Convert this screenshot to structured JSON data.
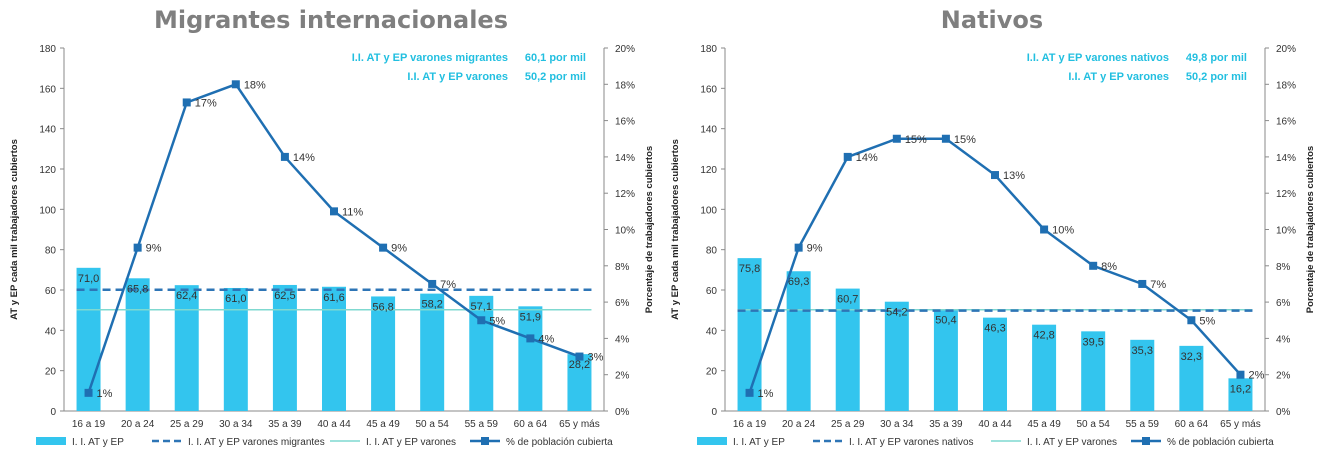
{
  "colors": {
    "bar": "#33c5ee",
    "line": "#1f6fb2",
    "dash": "#2e75b6",
    "thin": "#7fd9d0",
    "note": "#22bfe0",
    "title": "#7f7f7f",
    "axis": "#8a8a8a",
    "text": "#333333"
  },
  "chart_data": [
    {
      "type": "bar",
      "title": "Migrantes internacionales",
      "categories": [
        "16 a 19",
        "20 a 24",
        "25 a 29",
        "30 a 34",
        "35 a 39",
        "40 a 44",
        "45 a 49",
        "50 a 54",
        "55 a 59",
        "60 a 64",
        "65 y más"
      ],
      "bar_values": [
        71.0,
        65.8,
        62.4,
        61.0,
        62.5,
        61.6,
        56.8,
        58.2,
        57.1,
        51.9,
        28.2
      ],
      "bar_labels": [
        "71,0",
        "65,8",
        "62,4",
        "61,0",
        "62,5",
        "61,6",
        "56,8",
        "58,2",
        "57,1",
        "51,9",
        "28,2"
      ],
      "line_values": [
        1,
        9,
        17,
        18,
        14,
        11,
        9,
        7,
        5,
        4,
        3
      ],
      "line_labels": [
        "1%",
        "9%",
        "17%",
        "18%",
        "14%",
        "11%",
        "9%",
        "7%",
        "5%",
        "4%",
        "3%"
      ],
      "dash_value": 60.1,
      "thin_value": 50.2,
      "ylabel_left": "AT y EP cada mil trabajadores cubiertos",
      "ylabel_right": "Porcentaje de trabajadores cubiertos",
      "ylim_left": [
        0,
        180
      ],
      "ylim_right": [
        0,
        20
      ],
      "yticks_left": [
        "0",
        "20",
        "40",
        "60",
        "80",
        "100",
        "120",
        "140",
        "160",
        "180"
      ],
      "yticks_right": [
        "0%",
        "2%",
        "4%",
        "6%",
        "8%",
        "10%",
        "12%",
        "14%",
        "16%",
        "18%",
        "20%"
      ],
      "notes": [
        {
          "label": "I.I. AT y EP varones migrantes",
          "value": "60,1 por mil"
        },
        {
          "label": "I.I. AT y EP varones",
          "value": "50,2 por mil"
        }
      ],
      "legend": [
        "I. I. AT y EP",
        "I. I. AT y EP varones migrantes",
        "I. I. AT y EP varones",
        "% de población cubierta"
      ]
    },
    {
      "type": "bar",
      "title": "Nativos",
      "categories": [
        "16 a 19",
        "20 a 24",
        "25 a 29",
        "30 a 34",
        "35 a 39",
        "40 a 44",
        "45 a 49",
        "50 a 54",
        "55 a 59",
        "60 a 64",
        "65 y más"
      ],
      "bar_values": [
        75.8,
        69.3,
        60.7,
        54.2,
        50.4,
        46.3,
        42.8,
        39.5,
        35.3,
        32.3,
        16.2
      ],
      "bar_labels": [
        "75,8",
        "69,3",
        "60,7",
        "54,2",
        "50,4",
        "46,3",
        "42,8",
        "39,5",
        "35,3",
        "32,3",
        "16,2"
      ],
      "line_values": [
        1,
        9,
        14,
        15,
        15,
        13,
        10,
        8,
        7,
        5,
        2
      ],
      "line_labels": [
        "1%",
        "9%",
        "14%",
        "15%",
        "15%",
        "13%",
        "10%",
        "8%",
        "7%",
        "5%",
        "2%"
      ],
      "dash_value": 49.8,
      "thin_value": 50.2,
      "ylabel_left": "AT y EP cada mil trabajadores cubiertos",
      "ylabel_right": "Porcentaje de trabajadores cubiertos",
      "ylim_left": [
        0,
        180
      ],
      "ylim_right": [
        0,
        20
      ],
      "yticks_left": [
        "0",
        "20",
        "40",
        "60",
        "80",
        "100",
        "120",
        "140",
        "160",
        "180"
      ],
      "yticks_right": [
        "0%",
        "2%",
        "4%",
        "6%",
        "8%",
        "10%",
        "12%",
        "14%",
        "16%",
        "18%",
        "20%"
      ],
      "notes": [
        {
          "label": "I.I. AT y EP varones nativos",
          "value": "49,8 por mil"
        },
        {
          "label": "I.I. AT y EP varones",
          "value": "50,2 por mil"
        }
      ],
      "legend": [
        "I. I. AT y EP",
        "I. I. AT y EP varones nativos",
        "I. I. AT y EP varones",
        "% de población cubierta"
      ]
    }
  ]
}
